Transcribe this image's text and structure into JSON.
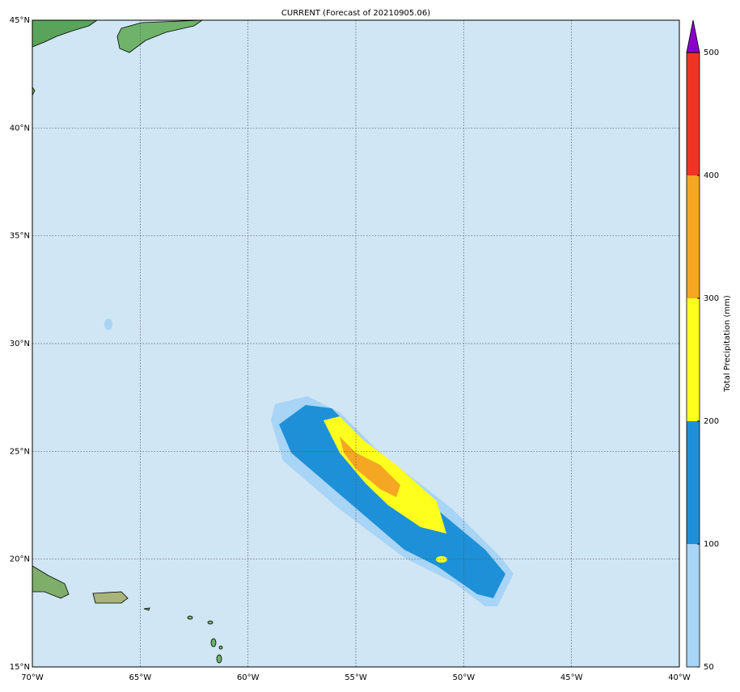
{
  "map": {
    "title": "CURRENT (Forecast of 20210905.06)",
    "lon_range": [
      -70,
      -40
    ],
    "lat_range": [
      15,
      45
    ],
    "lon_ticks": [
      {
        "value": -70,
        "label": "70°W"
      },
      {
        "value": -65,
        "label": "65°W"
      },
      {
        "value": -60,
        "label": "60°W"
      },
      {
        "value": -55,
        "label": "55°W"
      },
      {
        "value": -50,
        "label": "50°W"
      },
      {
        "value": -45,
        "label": "45°W"
      },
      {
        "value": -40,
        "label": "40°W"
      }
    ],
    "lat_ticks": [
      {
        "value": 15,
        "label": "15°N"
      },
      {
        "value": 20,
        "label": "20°N"
      },
      {
        "value": 25,
        "label": "25°N"
      },
      {
        "value": 30,
        "label": "30°N"
      },
      {
        "value": 35,
        "label": "35°N"
      },
      {
        "value": 40,
        "label": "40°N"
      },
      {
        "value": 45,
        "label": "45°N"
      }
    ],
    "colorbar": {
      "label": "Total Precipitation (mm)",
      "ticks": [
        50,
        100,
        200,
        300,
        400,
        500
      ],
      "colors": [
        "#a8d4f5",
        "#1e90d8",
        "#ffff1e",
        "#f5a623",
        "#ef3423"
      ],
      "over_color": "#8b00c8"
    }
  }
}
